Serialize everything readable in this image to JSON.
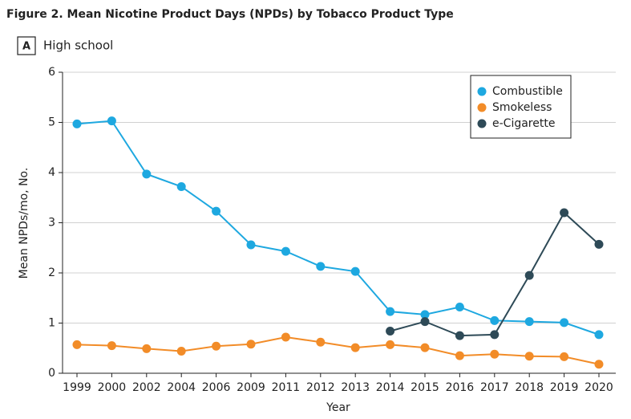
{
  "chart_data": {
    "type": "line",
    "title": "Figure 2.  Mean Nicotine Product Days (NPDs) by Tobacco Product Type",
    "panel_label": "A",
    "subtitle": "High school",
    "x_label": "Year",
    "y_label": "Mean NPDs/mo, No.",
    "categories": [
      "1999",
      "2000",
      "2002",
      "2004",
      "2006",
      "2009",
      "2011",
      "2012",
      "2013",
      "2014",
      "2015",
      "2016",
      "2017",
      "2018",
      "2019",
      "2020"
    ],
    "series": [
      {
        "name": "Combustible",
        "color": "#1ea8e0",
        "values": [
          4.97,
          5.03,
          3.97,
          3.72,
          3.23,
          2.56,
          2.43,
          2.13,
          2.03,
          1.23,
          1.17,
          1.32,
          1.05,
          1.03,
          1.01,
          0.77
        ]
      },
      {
        "name": "Smokeless",
        "color": "#f28c28",
        "values": [
          0.57,
          0.55,
          0.49,
          0.44,
          0.54,
          0.58,
          0.72,
          0.62,
          0.51,
          0.57,
          0.51,
          0.35,
          0.38,
          0.34,
          0.33,
          0.18
        ]
      },
      {
        "name": "e-Cigarette",
        "color": "#2e4a57",
        "values": [
          null,
          null,
          null,
          null,
          null,
          null,
          null,
          null,
          null,
          0.84,
          1.03,
          0.75,
          0.77,
          1.95,
          3.2,
          2.57
        ]
      }
    ],
    "ylim": [
      0,
      6
    ],
    "yticks": [
      0,
      1,
      2,
      3,
      4,
      5,
      6
    ],
    "grid": true,
    "legend": "upper right"
  }
}
